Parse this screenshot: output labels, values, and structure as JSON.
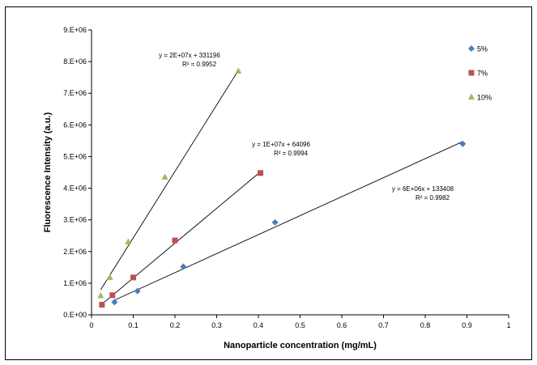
{
  "chart_data": {
    "type": "scatter",
    "xlabel": "Nanoparticle concentration (mg/mL)",
    "ylabel": "Fluorescence Intensity (a.u.)",
    "xlim": [
      0,
      1
    ],
    "ylim": [
      0,
      9000000
    ],
    "x_ticks": [
      "0",
      "0.1",
      "0.2",
      "0.3",
      "0.4",
      "0.5",
      "0.6",
      "0.7",
      "0.8",
      "0.9",
      "1"
    ],
    "y_ticks": [
      "0.E+00",
      "1.E+06",
      "2.E+06",
      "3.E+06",
      "4.E+06",
      "5.E+06",
      "6.E+06",
      "7.E+06",
      "8.E+06",
      "9.E+06"
    ],
    "grid": false,
    "legend": "top-right",
    "series": [
      {
        "name": "5%",
        "marker": "diamond",
        "color": "#4a7ebb",
        "x": [
          0.055,
          0.11,
          0.22,
          0.44,
          0.89
        ],
        "y": [
          400000,
          750000,
          1520000,
          2920000,
          5400000
        ],
        "trendline": {
          "slope": 6000000,
          "intercept": 133408,
          "x_range": [
            0.055,
            0.89
          ]
        },
        "equation": "y = 6E+06x + 133408",
        "r2": "R² = 0.9982"
      },
      {
        "name": "7%",
        "marker": "square",
        "color": "#c0504d",
        "x": [
          0.025,
          0.05,
          0.1,
          0.2,
          0.405
        ],
        "y": [
          320000,
          620000,
          1180000,
          2350000,
          4480000
        ],
        "trendline": {
          "slope": 11000000,
          "intercept": 64096,
          "x_range": [
            0.025,
            0.405
          ]
        },
        "equation": "y = 1E+07x + 64096",
        "r2": "R² = 0.9994"
      },
      {
        "name": "10%",
        "marker": "triangle",
        "color": "#9bbb59",
        "x": [
          0.022,
          0.044,
          0.088,
          0.176,
          0.352
        ],
        "y": [
          600000,
          1180000,
          2300000,
          4350000,
          7700000
        ],
        "trendline": {
          "slope": 21000000,
          "intercept": 331196,
          "x_range": [
            0.022,
            0.352
          ]
        },
        "equation": "y = 2E+07x + 331196",
        "r2": "R² = 0.9952"
      }
    ]
  }
}
